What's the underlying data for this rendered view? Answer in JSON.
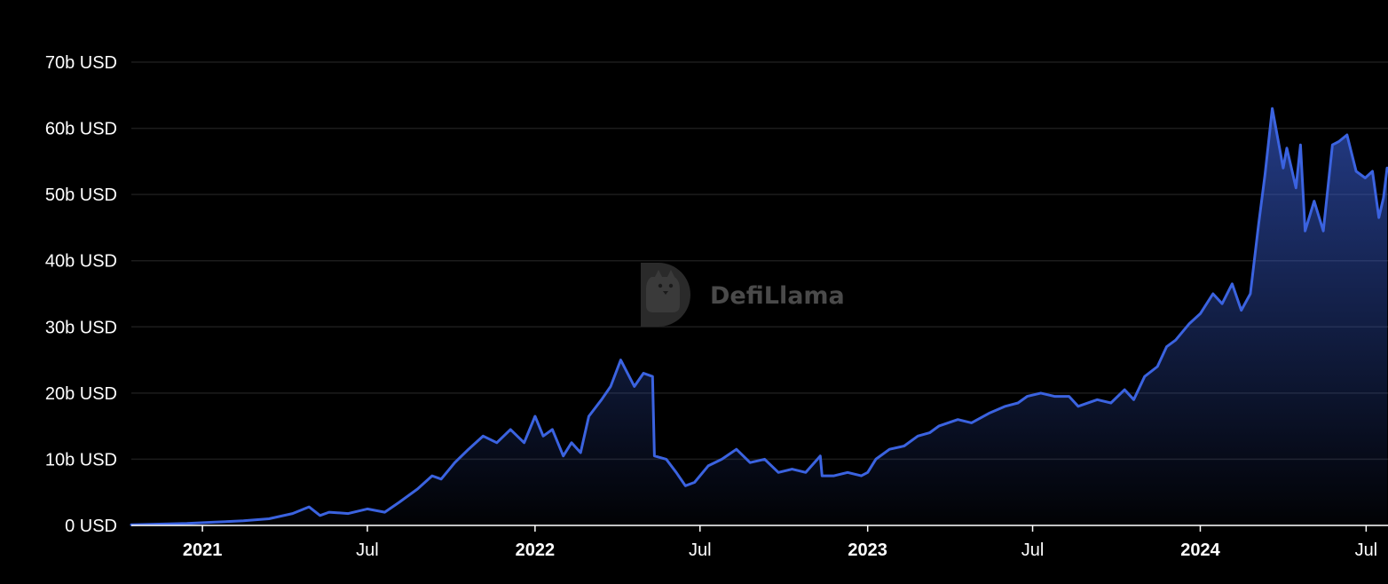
{
  "watermark": {
    "text": "DefiLlama",
    "icon": "llama-logo-icon"
  },
  "colors": {
    "background": "#000000",
    "line": "#3b63e0",
    "grid": "#1c1c1c",
    "text": "#ffffff",
    "watermark": "#4a4a4a"
  },
  "chart_data": {
    "type": "area",
    "title": "",
    "xlabel": "",
    "ylabel": "",
    "unit": "USD",
    "grid": true,
    "legend": "none",
    "ylim": [
      0,
      70
    ],
    "xlim": [
      "2020-10-15",
      "2024-07-25"
    ],
    "y_ticks": [
      {
        "value": 0,
        "label": "0 USD"
      },
      {
        "value": 10,
        "label": "10b USD"
      },
      {
        "value": 20,
        "label": "20b USD"
      },
      {
        "value": 30,
        "label": "30b USD"
      },
      {
        "value": 40,
        "label": "40b USD"
      },
      {
        "value": 50,
        "label": "50b USD"
      },
      {
        "value": 60,
        "label": "60b USD"
      },
      {
        "value": 70,
        "label": "70b USD"
      }
    ],
    "x_ticks": [
      {
        "date": "2021-01-01",
        "label": "2021",
        "bold": true
      },
      {
        "date": "2021-07-01",
        "label": "Jul",
        "bold": false
      },
      {
        "date": "2022-01-01",
        "label": "2022",
        "bold": true
      },
      {
        "date": "2022-07-01",
        "label": "Jul",
        "bold": false
      },
      {
        "date": "2023-01-01",
        "label": "2023",
        "bold": true
      },
      {
        "date": "2023-07-01",
        "label": "Jul",
        "bold": false
      },
      {
        "date": "2024-01-01",
        "label": "2024",
        "bold": true
      },
      {
        "date": "2024-07-01",
        "label": "Jul",
        "bold": false
      }
    ],
    "series": [
      {
        "x": [
          "2020-10-15",
          "2020-11-15",
          "2020-12-15",
          "2021-01-15",
          "2021-02-15",
          "2021-03-15",
          "2021-04-10",
          "2021-04-28",
          "2021-05-10",
          "2021-05-20",
          "2021-06-10",
          "2021-07-01",
          "2021-07-20",
          "2021-08-05",
          "2021-08-25",
          "2021-09-10",
          "2021-09-20",
          "2021-10-05",
          "2021-10-20",
          "2021-11-05",
          "2021-11-20",
          "2021-12-05",
          "2021-12-20",
          "2022-01-01",
          "2022-01-10",
          "2022-01-20",
          "2022-02-01",
          "2022-02-10",
          "2022-02-20",
          "2022-03-01",
          "2022-03-15",
          "2022-03-25",
          "2022-04-05",
          "2022-04-20",
          "2022-04-30",
          "2022-05-10",
          "2022-05-12",
          "2022-05-25",
          "2022-06-05",
          "2022-06-15",
          "2022-06-25",
          "2022-07-10",
          "2022-07-25",
          "2022-08-10",
          "2022-08-25",
          "2022-09-10",
          "2022-09-25",
          "2022-10-10",
          "2022-10-25",
          "2022-11-10",
          "2022-11-12",
          "2022-11-25",
          "2022-12-10",
          "2022-12-25",
          "2023-01-01",
          "2023-01-10",
          "2023-01-25",
          "2023-02-10",
          "2023-02-25",
          "2023-03-10",
          "2023-03-20",
          "2023-04-10",
          "2023-04-25",
          "2023-05-15",
          "2023-06-01",
          "2023-06-15",
          "2023-06-25",
          "2023-07-10",
          "2023-07-25",
          "2023-08-10",
          "2023-08-20",
          "2023-09-10",
          "2023-09-25",
          "2023-10-10",
          "2023-10-20",
          "2023-11-01",
          "2023-11-15",
          "2023-11-25",
          "2023-12-05",
          "2023-12-20",
          "2024-01-01",
          "2024-01-15",
          "2024-01-25",
          "2024-02-05",
          "2024-02-15",
          "2024-02-25",
          "2024-03-05",
          "2024-03-12",
          "2024-03-20",
          "2024-04-01",
          "2024-04-05",
          "2024-04-15",
          "2024-04-20",
          "2024-04-25",
          "2024-05-05",
          "2024-05-15",
          "2024-05-25",
          "2024-06-01",
          "2024-06-10",
          "2024-06-20",
          "2024-06-30",
          "2024-07-08",
          "2024-07-15",
          "2024-07-20",
          "2024-07-24"
        ],
        "values": [
          0.1,
          0.2,
          0.3,
          0.5,
          0.7,
          1.0,
          1.8,
          2.8,
          1.5,
          2.0,
          1.8,
          2.5,
          2.0,
          3.5,
          5.5,
          7.5,
          7.0,
          9.5,
          11.5,
          13.5,
          12.5,
          14.5,
          12.5,
          16.5,
          13.5,
          14.5,
          10.5,
          12.5,
          11.0,
          16.5,
          19.0,
          21.0,
          25.0,
          21.0,
          23.0,
          22.5,
          10.5,
          10.0,
          8.0,
          6.0,
          6.5,
          9.0,
          10.0,
          11.5,
          9.5,
          10.0,
          8.0,
          8.5,
          8.0,
          10.5,
          7.5,
          7.5,
          8.0,
          7.5,
          8.0,
          10.0,
          11.5,
          12.0,
          13.5,
          14.0,
          15.0,
          16.0,
          15.5,
          17.0,
          18.0,
          18.5,
          19.5,
          20.0,
          19.5,
          19.5,
          18.0,
          19.0,
          18.5,
          20.5,
          19.0,
          22.5,
          24.0,
          27.0,
          28.0,
          30.5,
          32.0,
          35.0,
          33.5,
          36.5,
          32.5,
          35.0,
          45.5,
          53.0,
          63.0,
          54.0,
          57.0,
          51.0,
          57.5,
          44.5,
          49.0,
          44.5,
          57.5,
          58.0,
          59.0,
          53.5,
          52.5,
          53.5,
          46.5,
          49.5,
          54.0
        ]
      }
    ]
  }
}
